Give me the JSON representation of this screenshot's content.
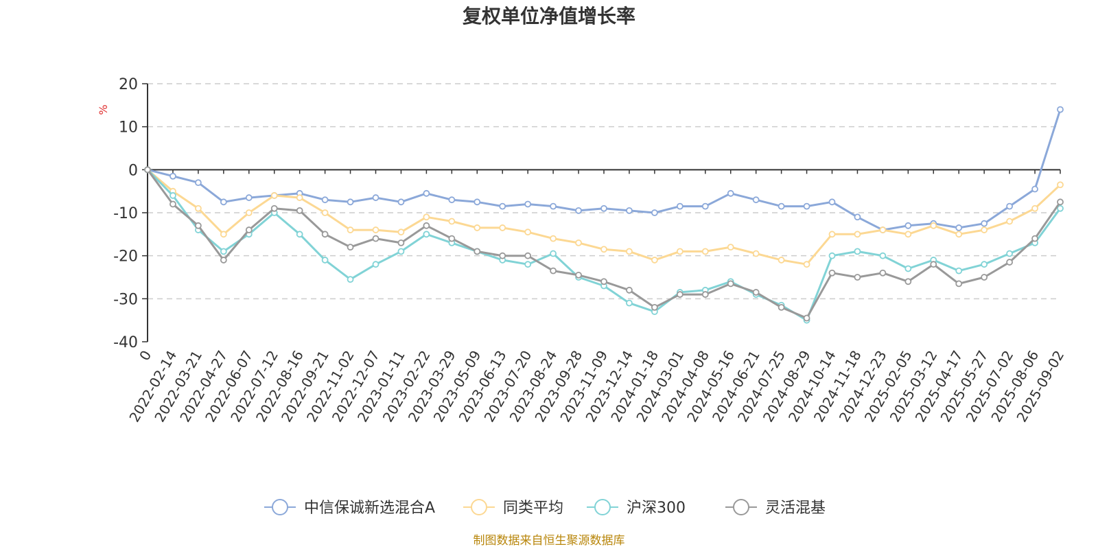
{
  "chart_data": {
    "type": "line",
    "title": "复权单位净值增长率",
    "ylabel": "%",
    "xlabel": "",
    "ylim": [
      -40,
      20
    ],
    "yticks": [
      20,
      10,
      0,
      -10,
      -20,
      -30,
      -40
    ],
    "grid": true,
    "legend_position": "bottom",
    "x_tick_labels": [
      "0",
      "2022-02-14",
      "2022-03-21",
      "2022-04-27",
      "2022-06-07",
      "2022-07-12",
      "2022-08-16",
      "2022-09-21",
      "2022-11-02",
      "2022-12-07",
      "2023-01-11",
      "2023-02-22",
      "2023-03-29",
      "2023-05-09",
      "2023-06-13",
      "2023-07-20",
      "2023-08-24",
      "2023-09-28",
      "2023-11-09",
      "2023-12-14",
      "2024-01-18",
      "2024-03-01",
      "2024-04-08",
      "2024-05-16",
      "2024-06-21",
      "2024-07-25",
      "2024-08-29",
      "2024-10-14",
      "2024-11-18",
      "2024-12-23",
      "2025-02-05",
      "2025-03-12",
      "2025-04-17",
      "2025-05-27",
      "2025-07-02",
      "2025-08-06",
      "2025-09-02"
    ],
    "x": [
      "0",
      "2022-02-14",
      "2022-03-21",
      "2022-04-27",
      "2022-06-07",
      "2022-07-12",
      "2022-08-16",
      "2022-09-21",
      "2022-11-02",
      "2022-12-07",
      "2023-01-11",
      "2023-02-22",
      "2023-03-29",
      "2023-05-09",
      "2023-06-13",
      "2023-07-20",
      "2023-08-24",
      "2023-09-28",
      "2023-11-09",
      "2023-12-14",
      "2024-01-18",
      "2024-03-01",
      "2024-04-08",
      "2024-05-16",
      "2024-06-21",
      "2024-07-25",
      "2024-08-29",
      "2024-10-14",
      "2024-11-18",
      "2024-12-23",
      "2025-02-05",
      "2025-03-12",
      "2025-04-17",
      "2025-05-27",
      "2025-07-02",
      "2025-08-06",
      "2025-09-02"
    ],
    "series": [
      {
        "name": "中信保诚新选混合A",
        "color": "#8ba8d9",
        "values": [
          0,
          -1.5,
          -3,
          -7.5,
          -6.5,
          -6,
          -5.5,
          -7,
          -7.5,
          -6.5,
          -7.5,
          -5.5,
          -7,
          -7.5,
          -8.5,
          -8,
          -8.5,
          -9.5,
          -9,
          -9.5,
          -10,
          -8.5,
          -8.5,
          -5.5,
          -7,
          -8.5,
          -8.5,
          -7.5,
          -11,
          -14,
          -13,
          -12.5,
          -13.5,
          -12.5,
          -8.5,
          -4.5,
          14
        ]
      },
      {
        "name": "同类平均",
        "color": "#fcd893",
        "values": [
          0,
          -5,
          -9,
          -15,
          -10,
          -6,
          -6.5,
          -10,
          -14,
          -14,
          -14.5,
          -11,
          -12,
          -13.5,
          -13.5,
          -14.5,
          -16,
          -17,
          -18.5,
          -19,
          -21,
          -19,
          -19,
          -18,
          -19.5,
          -21,
          -22,
          -15,
          -15,
          -14,
          -15,
          -13,
          -15,
          -14,
          -12,
          -9,
          -3.5
        ]
      },
      {
        "name": "沪深300",
        "color": "#81d3d6",
        "values": [
          0,
          -6,
          -14,
          -19,
          -15,
          -10,
          -15,
          -21,
          -25.5,
          -22,
          -19,
          -15,
          -17,
          -19,
          -21,
          -22,
          -19.5,
          -25,
          -27,
          -31,
          -33,
          -28.5,
          -28,
          -26,
          -29,
          -31.5,
          -35,
          -20,
          -19,
          -20,
          -23,
          -21,
          -23.5,
          -22,
          -19.5,
          -17,
          -9
        ]
      },
      {
        "name": "灵活混基",
        "color": "#999999",
        "values": [
          0,
          -8,
          -13,
          -21,
          -14,
          -9,
          -9.5,
          -15,
          -18,
          -16,
          -17,
          -13,
          -16,
          -19,
          -20,
          -20,
          -23.5,
          -24.5,
          -26,
          -28,
          -32,
          -29,
          -29,
          -26.5,
          -28.5,
          -32,
          -34.5,
          -24,
          -25,
          -24,
          -26,
          -22,
          -26.5,
          -25,
          -21.5,
          -16,
          -7.5
        ]
      }
    ]
  },
  "footer": "制图数据来自恒生聚源数据库",
  "colors": {
    "axis": "#333333",
    "grid": "#cccccc",
    "unit": "#e03030",
    "footer": "#b8860b"
  }
}
